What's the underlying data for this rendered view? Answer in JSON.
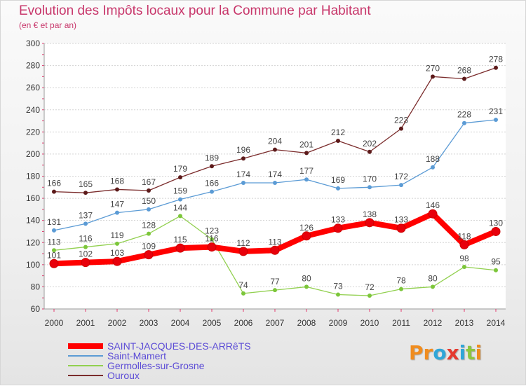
{
  "title": "Evolution des Impôts locaux pour la Commune par Habitant",
  "subtitle": "(en € et par an)",
  "logo": {
    "text": "Proxiti",
    "letters": [
      "P",
      "r",
      "o",
      "x",
      "i",
      "t",
      "i"
    ],
    "colors": [
      "#f08c1e",
      "#f08c1e",
      "#2fa6d8",
      "#e53a2f",
      "#2fa6d8",
      "#8cc63f",
      "#f08c1e"
    ]
  },
  "chart_data": {
    "type": "line",
    "title": "Evolution des Impôts locaux pour la Commune par Habitant",
    "subtitle": "(en € et par an)",
    "xlabel": "",
    "ylabel": "",
    "x": [
      2000,
      2001,
      2002,
      2003,
      2004,
      2005,
      2006,
      2007,
      2008,
      2009,
      2010,
      2011,
      2012,
      2013,
      2014
    ],
    "yticks": [
      60,
      80,
      100,
      120,
      140,
      160,
      180,
      200,
      220,
      240,
      260,
      280,
      300
    ],
    "ylim": [
      60,
      300
    ],
    "grid": "horizontal",
    "legend_position": "bottom-left",
    "series": [
      {
        "name": "SAINT-JACQUES-DES-ARRêTS",
        "color": "#ff0000",
        "marker": "#e8000b",
        "thick": true,
        "values": [
          101,
          102,
          103,
          109,
          115,
          116,
          112,
          113,
          126,
          133,
          138,
          133,
          146,
          118,
          130
        ]
      },
      {
        "name": "Saint-Mamert",
        "color": "#5b9bd5",
        "marker": "#5b9bd5",
        "thick": false,
        "values": [
          131,
          137,
          147,
          150,
          159,
          166,
          174,
          174,
          177,
          169,
          170,
          172,
          188,
          228,
          231
        ]
      },
      {
        "name": "Germolles-sur-Grosne",
        "color": "#92d050",
        "marker": "#7cc63a",
        "thick": false,
        "values": [
          113,
          116,
          119,
          128,
          144,
          123,
          74,
          77,
          80,
          73,
          72,
          78,
          80,
          98,
          95
        ]
      },
      {
        "name": "Ouroux",
        "color": "#7b2c2c",
        "marker": "#5c1a1a",
        "thick": false,
        "values": [
          166,
          165,
          168,
          167,
          179,
          189,
          196,
          204,
          201,
          212,
          202,
          223,
          270,
          268,
          278
        ]
      }
    ]
  }
}
